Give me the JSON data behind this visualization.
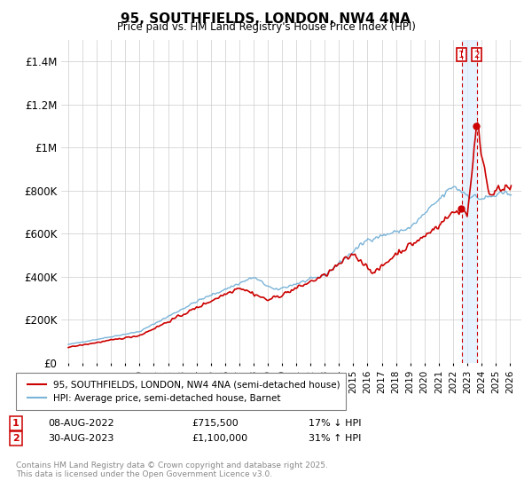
{
  "title": "95, SOUTHFIELDS, LONDON, NW4 4NA",
  "subtitle": "Price paid vs. HM Land Registry's House Price Index (HPI)",
  "hpi_color": "#7ab4d8",
  "price_color": "#cc0000",
  "vline_color": "#cc0000",
  "shade_color": "#ddeeff",
  "legend_label1": "95, SOUTHFIELDS, LONDON, NW4 4NA (semi-detached house)",
  "legend_label2": "HPI: Average price, semi-detached house, Barnet",
  "table_row1_num": "1",
  "table_row1_date": "08-AUG-2022",
  "table_row1_price": "£715,500",
  "table_row1_hpi": "17% ↓ HPI",
  "table_row2_num": "2",
  "table_row2_date": "30-AUG-2023",
  "table_row2_price": "£1,100,000",
  "table_row2_hpi": "31% ↑ HPI",
  "footer": "Contains HM Land Registry data © Crown copyright and database right 2025.\nThis data is licensed under the Open Government Licence v3.0.",
  "bg_color": "#ffffff",
  "grid_color": "#cccccc",
  "marker1_year": 2022.6,
  "marker2_year": 2023.66,
  "ylim_max": 1500000,
  "yticks": [
    0,
    200000,
    400000,
    600000,
    800000,
    1000000,
    1200000,
    1400000
  ],
  "ytick_labels": [
    "£0",
    "£200K",
    "£400K",
    "£600K",
    "£800K",
    "£1M",
    "£1.2M",
    "£1.4M"
  ]
}
